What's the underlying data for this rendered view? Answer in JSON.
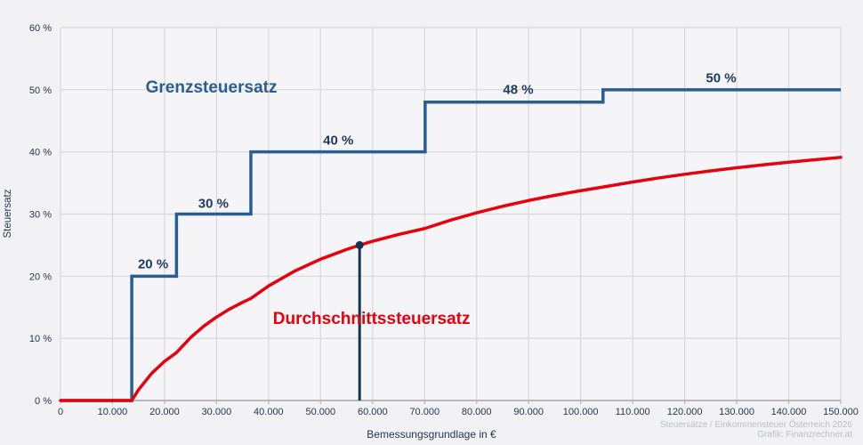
{
  "colors": {
    "background": "#f2f2f4",
    "plot_background": "#f5f5f7",
    "grid": "#d8d8dc",
    "axis_line": "#a8a8ae",
    "tick_mark": "#b6b6bc",
    "tick_text": "#22374e",
    "marginal_line": "#285e90",
    "average_line": "#e7000e",
    "marker": "#14344f",
    "step_label": "#1d3a5f",
    "watermark": "#b8bec9"
  },
  "chart_data": {
    "type": "line",
    "title": "",
    "xlabel": "Bemessungsgrundlage in €",
    "ylabel": "Steuersatz",
    "xlim": [
      0,
      150000
    ],
    "ylim": [
      0,
      60
    ],
    "grid": true,
    "legend": "none (labels drawn as in-plot annotations)",
    "x_ticks": {
      "values": [
        0,
        10000,
        20000,
        30000,
        40000,
        50000,
        60000,
        70000,
        80000,
        90000,
        100000,
        110000,
        120000,
        130000,
        140000,
        150000
      ],
      "labels": [
        "0",
        "10.000",
        "20.000",
        "30.000",
        "40.000",
        "50.000",
        "60.000",
        "70.000",
        "80.000",
        "90.000",
        "100.000",
        "110.000",
        "120.000",
        "130.000",
        "140.000",
        "150.000"
      ]
    },
    "y_ticks": {
      "values": [
        0,
        10,
        20,
        30,
        40,
        50,
        60
      ],
      "labels": [
        "0 %",
        "10 %",
        "20 %",
        "30 %",
        "40 %",
        "50 %",
        "60 %"
      ]
    },
    "series": [
      {
        "name": "Grenzsteuersatz",
        "type": "step",
        "color_key": "marginal_line",
        "segments": [
          {
            "from": 0,
            "to": 13700,
            "rate": 0
          },
          {
            "from": 13700,
            "to": 22300,
            "rate": 20
          },
          {
            "from": 22300,
            "to": 36600,
            "rate": 30
          },
          {
            "from": 36600,
            "to": 70100,
            "rate": 40
          },
          {
            "from": 70100,
            "to": 104300,
            "rate": 48
          },
          {
            "from": 104300,
            "to": 150000,
            "rate": 50
          }
        ]
      },
      {
        "name": "Durchschnittssteuersatz",
        "type": "curve",
        "color_key": "average_line",
        "points": [
          [
            0,
            0
          ],
          [
            13700,
            0
          ],
          [
            15000,
            1.73
          ],
          [
            17500,
            4.34
          ],
          [
            20000,
            6.3
          ],
          [
            22300,
            7.71
          ],
          [
            25000,
            10.12
          ],
          [
            27500,
            11.93
          ],
          [
            30000,
            13.43
          ],
          [
            32500,
            14.71
          ],
          [
            35000,
            15.8
          ],
          [
            36600,
            16.42
          ],
          [
            40000,
            18.43
          ],
          [
            45000,
            20.82
          ],
          [
            50000,
            22.74
          ],
          [
            55000,
            24.31
          ],
          [
            57500,
            24.99
          ],
          [
            60000,
            25.62
          ],
          [
            65000,
            26.72
          ],
          [
            70100,
            27.69
          ],
          [
            75000,
            29.02
          ],
          [
            80000,
            30.2
          ],
          [
            85000,
            31.25
          ],
          [
            90000,
            32.18
          ],
          [
            95000,
            33.01
          ],
          [
            100000,
            33.76
          ],
          [
            104300,
            34.35
          ],
          [
            110000,
            35.16
          ],
          [
            115000,
            35.81
          ],
          [
            120000,
            36.4
          ],
          [
            125000,
            36.94
          ],
          [
            130000,
            37.44
          ],
          [
            135000,
            37.91
          ],
          [
            140000,
            38.34
          ],
          [
            145000,
            38.74
          ],
          [
            150000,
            39.12
          ]
        ]
      }
    ],
    "marker_point": {
      "x": 57500,
      "y": 25
    },
    "annotations": [
      {
        "text": "20 %",
        "x": 17800,
        "y": 21.9,
        "kind": "step"
      },
      {
        "text": "30 %",
        "x": 29400,
        "y": 31.6,
        "kind": "step"
      },
      {
        "text": "40 %",
        "x": 53400,
        "y": 41.8,
        "kind": "step"
      },
      {
        "text": "48 %",
        "x": 88000,
        "y": 50.0,
        "kind": "step"
      },
      {
        "text": "50 %",
        "x": 127000,
        "y": 51.9,
        "kind": "step"
      },
      {
        "text": "Grenzsteuersatz",
        "x": 29000,
        "y": 50.2,
        "kind": "series-blue"
      },
      {
        "text": "Durchschnittssteuersatz",
        "x": 59800,
        "y": 13.1,
        "kind": "series-red"
      }
    ]
  },
  "watermark": {
    "line1": "Steuersätze / Einkommensteuer Österreich 2026",
    "line2": "Grafik: Finanzrechner.at"
  }
}
